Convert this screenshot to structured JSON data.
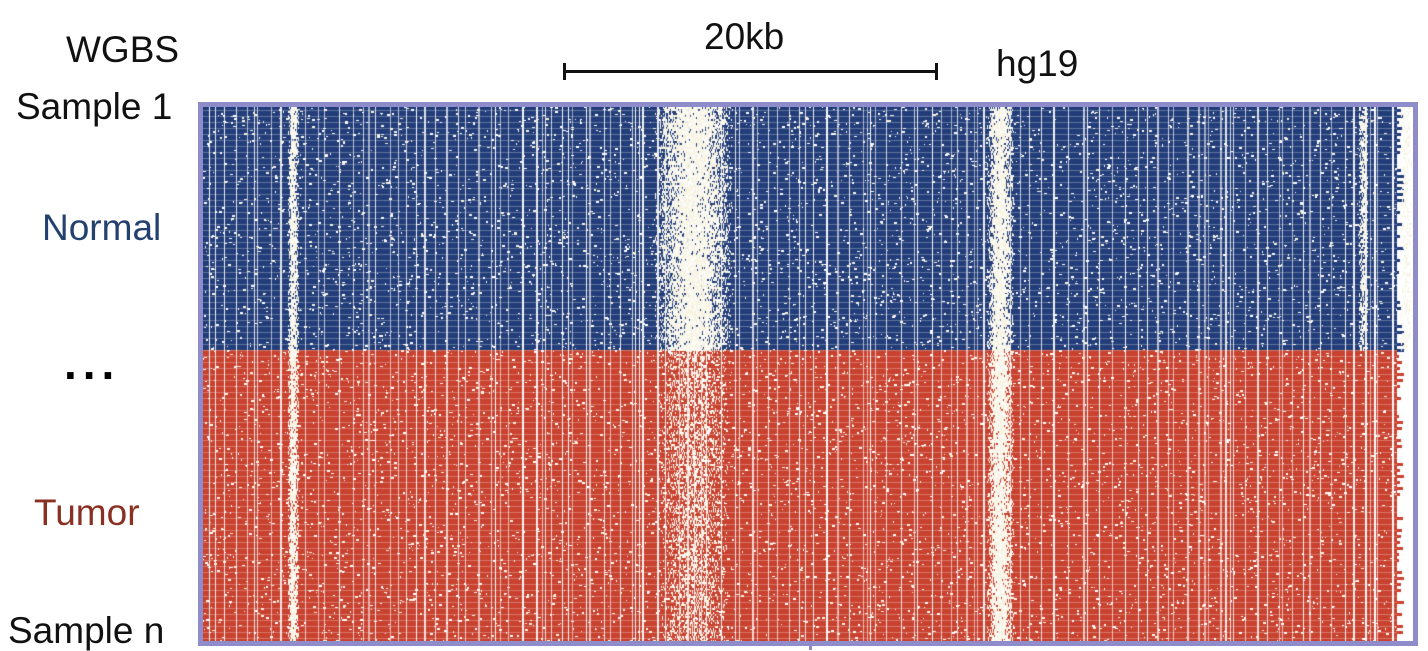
{
  "header": {
    "assay": "WGBS",
    "scale_label": "20kb",
    "genome_build": "hg19"
  },
  "rows": {
    "first_sample": "Sample 1",
    "last_sample": "Sample n",
    "ellipsis": "...",
    "groups": [
      {
        "label": "Normal",
        "color": "#23406e"
      },
      {
        "label": "Tumor",
        "color": "#8a3022"
      }
    ]
  },
  "colors": {
    "normal_methylated": "#223d79",
    "tumor_methylated": "#c9412f",
    "unmethylated": "#ffffff",
    "low_coverage": "#f8f4e4",
    "frame": "#8f8ccc"
  }
}
